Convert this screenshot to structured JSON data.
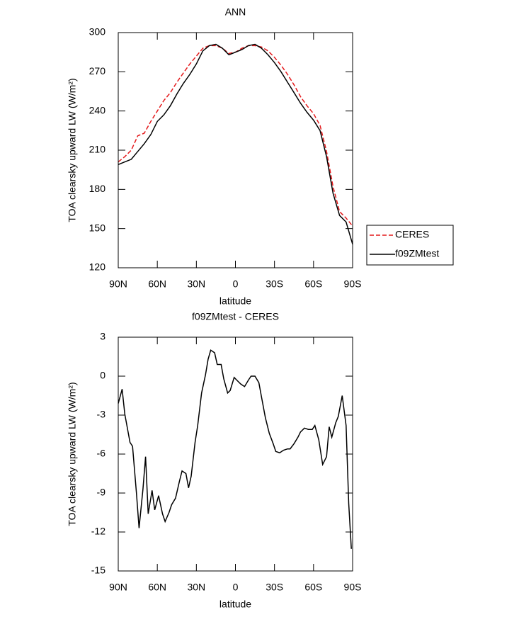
{
  "chart_data": [
    {
      "type": "line",
      "title": "ANN",
      "xlabel": "latitude",
      "ylabel": "TOA clearsky upward LW (W/m²)",
      "x": [
        90,
        85,
        80,
        75,
        70,
        65,
        60,
        55,
        50,
        45,
        40,
        35,
        30,
        25,
        20,
        15,
        10,
        5,
        0,
        -5,
        -10,
        -15,
        -20,
        -25,
        -30,
        -35,
        -40,
        -45,
        -50,
        -55,
        -60,
        -65,
        -70,
        -75,
        -80,
        -85,
        -90
      ],
      "series": [
        {
          "name": "CERES",
          "color": "#e41a1c",
          "dash": true,
          "values": [
            201,
            205,
            210,
            221,
            223,
            232,
            240,
            248,
            254,
            262,
            269,
            276,
            282,
            288,
            290,
            290,
            288,
            284,
            285,
            288,
            290,
            290,
            289,
            286,
            281,
            275,
            268,
            260,
            251,
            244,
            238,
            229,
            209,
            182,
            163,
            158,
            152
          ]
        },
        {
          "name": "f09ZMtest",
          "color": "#000000",
          "dash": false,
          "values": [
            199,
            201,
            203,
            209,
            215,
            222,
            232,
            237,
            244,
            253,
            261,
            268,
            276,
            286,
            290,
            291,
            288,
            283,
            285,
            287,
            290,
            291,
            288,
            283,
            277,
            270,
            262,
            254,
            246,
            239,
            233,
            225,
            205,
            177,
            160,
            155,
            138
          ]
        }
      ],
      "xlim": [
        90,
        -90
      ],
      "xticks": [
        {
          "value": 90,
          "label": "90N"
        },
        {
          "value": 60,
          "label": "60N"
        },
        {
          "value": 30,
          "label": "30N"
        },
        0,
        {
          "value": -30,
          "label": "30S"
        },
        {
          "value": -60,
          "label": "60S"
        },
        {
          "value": -90,
          "label": "90S"
        }
      ],
      "ylim": [
        120,
        300
      ],
      "yticks": [
        120,
        150,
        180,
        210,
        240,
        270,
        300
      ],
      "legend": "outside-right"
    },
    {
      "type": "line",
      "title": "f09ZMtest - CERES",
      "xlabel": "latitude",
      "ylabel": "TOA clearsky upward LW (W/m²)",
      "x": [
        90,
        87,
        85,
        81,
        79,
        76,
        74,
        71,
        69,
        67,
        64,
        62,
        59,
        56,
        54,
        51,
        49,
        46,
        43,
        41,
        38,
        36,
        34,
        31,
        29,
        26,
        23,
        21,
        19,
        16,
        14,
        11,
        9,
        6,
        4,
        1,
        -1,
        -4,
        -7,
        -10,
        -12,
        -15,
        -18,
        -20,
        -23,
        -26,
        -29,
        -31,
        -34,
        -37,
        -40,
        -42,
        -45,
        -48,
        -50,
        -53,
        -56,
        -59,
        -61,
        -64,
        -67,
        -70,
        -72,
        -74,
        -77,
        -79,
        -82,
        -85,
        -87,
        -89
      ],
      "series": [
        {
          "name": "f09ZMtest - CERES",
          "color": "#000000",
          "dash": false,
          "values": [
            -2.1,
            -1.0,
            -2.9,
            -5.1,
            -5.4,
            -9.0,
            -11.7,
            -8.7,
            -6.2,
            -10.6,
            -8.8,
            -10.3,
            -9.2,
            -10.6,
            -11.2,
            -10.5,
            -9.9,
            -9.4,
            -8.1,
            -7.3,
            -7.5,
            -8.6,
            -7.7,
            -5.1,
            -3.8,
            -1.3,
            0.1,
            1.3,
            2.0,
            1.8,
            0.9,
            0.9,
            -0.2,
            -1.3,
            -1.1,
            -0.1,
            -0.3,
            -0.6,
            -0.8,
            -0.3,
            0,
            0,
            -0.5,
            -1.6,
            -3.2,
            -4.4,
            -5.2,
            -5.8,
            -5.9,
            -5.7,
            -5.6,
            -5.6,
            -5.2,
            -4.7,
            -4.3,
            -4.0,
            -4.1,
            -4.1,
            -3.8,
            -4.9,
            -6.8,
            -6.2,
            -3.9,
            -4.7,
            -3.6,
            -3.1,
            -1.5,
            -3.8,
            -9.8,
            -13.3
          ]
        }
      ],
      "xlim": [
        90,
        -90
      ],
      "xticks": [
        {
          "value": 90,
          "label": "90N"
        },
        {
          "value": 60,
          "label": "60N"
        },
        {
          "value": 30,
          "label": "30N"
        },
        0,
        {
          "value": -30,
          "label": "30S"
        },
        {
          "value": -60,
          "label": "60S"
        },
        {
          "value": -90,
          "label": "90S"
        }
      ],
      "ylim": [
        -15,
        3
      ],
      "yticks": [
        -15,
        -12,
        -9,
        -6,
        -3,
        0,
        3
      ]
    }
  ]
}
